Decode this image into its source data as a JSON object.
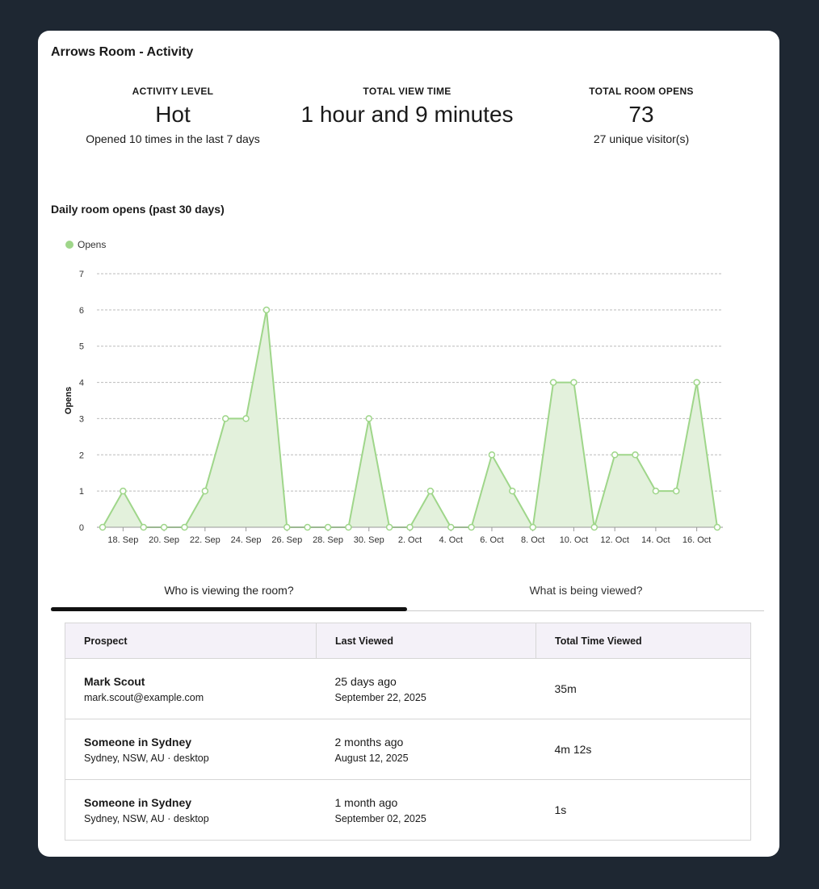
{
  "title": "Arrows Room - Activity",
  "stats": [
    {
      "label": "ACTIVITY LEVEL",
      "value": "Hot",
      "sub": "Opened 10 times in the last 7 days"
    },
    {
      "label": "TOTAL VIEW TIME",
      "value": "1 hour and 9 minutes",
      "sub": ""
    },
    {
      "label": "TOTAL ROOM OPENS",
      "value": "73",
      "sub": "27 unique visitor(s)"
    }
  ],
  "chart_data": {
    "type": "area",
    "title": "Daily room opens (past 30 days)",
    "legend": {
      "label": "Opens",
      "position": "top-left"
    },
    "ylabel": "Opens",
    "xlabel": "",
    "ylim": [
      0,
      7
    ],
    "yticks": [
      "0",
      "1",
      "2",
      "3",
      "4",
      "5",
      "6",
      "7"
    ],
    "grid": true,
    "color": "#9fd68a",
    "fill": "#e3f1dc",
    "x": [
      "17. Sep",
      "18. Sep",
      "19. Sep",
      "20. Sep",
      "21. Sep",
      "22. Sep",
      "23. Sep",
      "24. Sep",
      "25. Sep",
      "26. Sep",
      "27. Sep",
      "28. Sep",
      "29. Sep",
      "30. Sep",
      "1. Oct",
      "2. Oct",
      "3. Oct",
      "4. Oct",
      "5. Oct",
      "6. Oct",
      "7. Oct",
      "8. Oct",
      "9. Oct",
      "10. Oct",
      "11. Oct",
      "12. Oct",
      "13. Oct",
      "14. Oct",
      "15. Oct",
      "16. Oct",
      "17. Oct"
    ],
    "xticks": [
      "18. Sep",
      "20. Sep",
      "22. Sep",
      "24. Sep",
      "26. Sep",
      "28. Sep",
      "30. Sep",
      "2. Oct",
      "4. Oct",
      "6. Oct",
      "8. Oct",
      "10. Oct",
      "12. Oct",
      "14. Oct",
      "16. Oct"
    ],
    "values": [
      0,
      1,
      0,
      0,
      0,
      1,
      3,
      3,
      6,
      0,
      0,
      0,
      0,
      3,
      0,
      0,
      1,
      0,
      0,
      2,
      1,
      0,
      4,
      4,
      0,
      2,
      2,
      1,
      1,
      4,
      0
    ]
  },
  "tabs": [
    {
      "label": "Who is viewing the room?",
      "active": true
    },
    {
      "label": "What is being viewed?",
      "active": false
    }
  ],
  "table": {
    "headers": [
      "Prospect",
      "Last Viewed",
      "Total Time Viewed"
    ],
    "rows": [
      {
        "name": "Mark Scout",
        "detail": "mark.scout@example.com",
        "relative": "25 days ago",
        "date": "September 22, 2025",
        "time": "35m"
      },
      {
        "name": "Someone in Sydney",
        "detail": "Sydney, NSW, AU · desktop",
        "relative": "2 months ago",
        "date": "August 12, 2025",
        "time": "4m 12s"
      },
      {
        "name": "Someone in Sydney",
        "detail": "Sydney, NSW, AU · desktop",
        "relative": "1 month ago",
        "date": "September 02, 2025",
        "time": "1s"
      }
    ]
  }
}
